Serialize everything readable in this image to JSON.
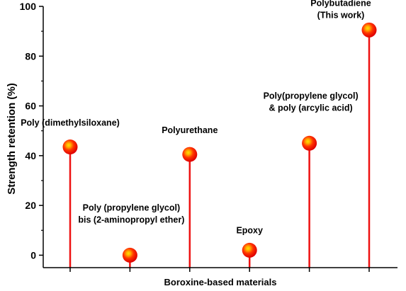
{
  "chart_data": {
    "type": "lollipop",
    "title": "",
    "xlabel": "Boroxine-based materials",
    "ylabel": "Strength retention (%)",
    "ylim": [
      -5,
      100
    ],
    "yticks": [
      "0",
      "20",
      "40",
      "60",
      "80",
      "100"
    ],
    "grid": false,
    "legend": "none",
    "stem_color": "#ee1111",
    "marker_color": "#ee1111",
    "marker_highlight_color": "#ffe000",
    "points": [
      {
        "category": "Poly (dimethylsiloxane)",
        "value": 43.5,
        "label_lines": [
          "Poly (dimethylsiloxane)"
        ]
      },
      {
        "category": "Poly (propylene glycol) bis (2-aminopropyl ether)",
        "value": 0,
        "label_lines": [
          "Poly (propylene glycol)",
          "bis (2-aminopropyl ether)"
        ]
      },
      {
        "category": "Polyurethane",
        "value": 40.5,
        "label_lines": [
          "Polyurethane"
        ]
      },
      {
        "category": "Epoxy",
        "value": 2,
        "label_lines": [
          "Epoxy"
        ]
      },
      {
        "category": "Poly(propylene glycol) & poly (arcylic acid)",
        "value": 45,
        "label_lines": [
          "Poly(propylene glycol)",
          "& poly (arcylic acid)"
        ]
      },
      {
        "category": "Polybutadiene (This work)",
        "value": 90.5,
        "label_lines": [
          "Polybutadiene",
          "(This work)"
        ]
      }
    ]
  }
}
